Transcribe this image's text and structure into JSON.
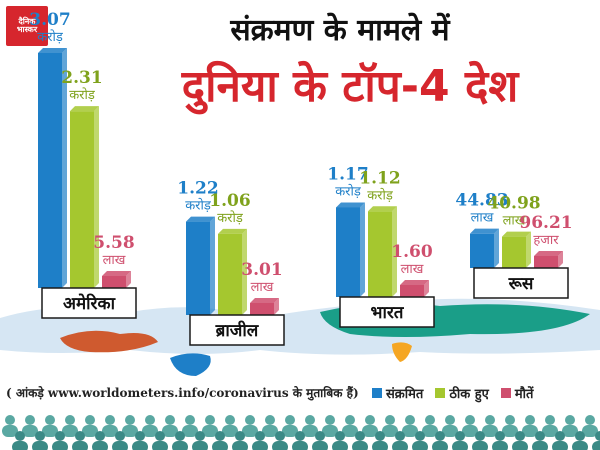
{
  "brand": {
    "logo_line1": "दैनिक",
    "logo_line2": "भास्कर"
  },
  "headline": {
    "line1": "संक्रमण के मामले में",
    "line2": "दुनिया के टॉप-4 देश"
  },
  "source_note": "( आंकड़े www.worldometers.info/coronavirus के मुताबिक हैं)",
  "colors": {
    "infected": "#1e7fc8",
    "recovered": "#a5c72f",
    "deaths": "#cf4f6e",
    "title_red": "#d6262d"
  },
  "chart_data": {
    "type": "bar",
    "categories": [
      "अमेरिका",
      "ब्राजील",
      "भारत",
      "रूस"
    ],
    "series": [
      {
        "name": "संक्रमित",
        "values": [
          30700000,
          12200000,
          11700000,
          4483000
        ],
        "labels": [
          [
            "3.07",
            "करोड़"
          ],
          [
            "1.22",
            "करोड़"
          ],
          [
            "1.17",
            "करोड़"
          ],
          [
            "44.83",
            "लाख"
          ]
        ]
      },
      {
        "name": "ठीक हुए",
        "values": [
          23100000,
          10600000,
          11200000,
          4098000
        ],
        "labels": [
          [
            "2.31",
            "करोड़"
          ],
          [
            "1.06",
            "करोड़"
          ],
          [
            "1.12",
            "करोड़"
          ],
          [
            "40.98",
            "लाख"
          ]
        ]
      },
      {
        "name": "मौतें",
        "values": [
          558000,
          301000,
          160000,
          96210
        ],
        "labels": [
          [
            "5.58",
            "लाख"
          ],
          [
            "3.01",
            "लाख"
          ],
          [
            "1.60",
            "लाख"
          ],
          [
            "96.21",
            "हजार"
          ]
        ]
      }
    ],
    "legend_position": "bottom-right",
    "grid": false
  }
}
